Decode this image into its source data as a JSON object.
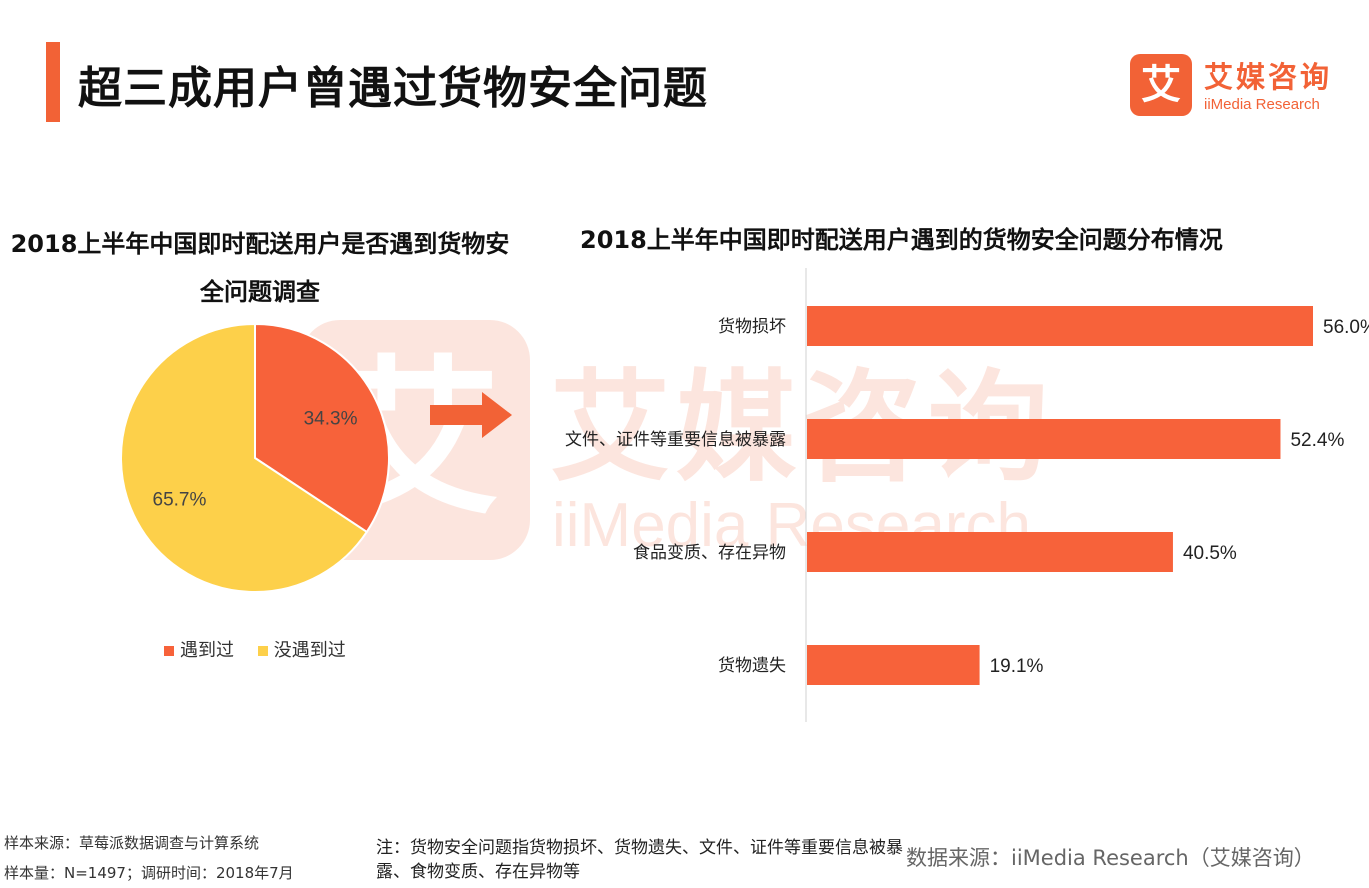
{
  "header": {
    "title": "超三成用户曾遇过货物安全问题",
    "logo_glyph": "艾",
    "logo_cn": "艾媒咨询",
    "logo_en": "iiMedia Research"
  },
  "watermark": {
    "glyph": "艾",
    "cn": "艾媒咨询",
    "en": "iiMedia Research"
  },
  "colors": {
    "accent": "#f26236",
    "encountered": "#f7623a",
    "not_encountered": "#fdd04a"
  },
  "chart_data": [
    {
      "type": "pie",
      "title": "2018上半年中国即时配送用户是否遇到货物安全问题调查",
      "labels": [
        "遇到过",
        "没遇到过"
      ],
      "values": [
        34.3,
        65.7
      ],
      "value_labels": [
        "34.3%",
        "65.7%"
      ],
      "colors": [
        "#f7623a",
        "#fdd04a"
      ],
      "legend": "bottom"
    },
    {
      "type": "bar",
      "orientation": "horizontal",
      "title": "2018上半年中国即时配送用户遇到的货物安全问题分布情况",
      "categories": [
        "货物损坏",
        "文件、证件等重要信息被暴露",
        "食品变质、存在异物",
        "货物遗失"
      ],
      "values": [
        56.0,
        52.4,
        40.5,
        19.1
      ],
      "value_labels": [
        "56.0%",
        "52.4%",
        "40.5%",
        "19.1%"
      ],
      "xlim": [
        0,
        60
      ],
      "color": "#f7623a",
      "grid": false
    }
  ],
  "footer": {
    "sample_source": "样本来源：草莓派数据调查与计算系统",
    "sample_size": "样本量：N=1497；调研时间：2018年7月",
    "note": "注：货物安全问题指货物损坏、货物遗失、文件、证件等重要信息被暴露、食物变质、存在异物等",
    "data_source": "数据来源：iiMedia Research（艾媒咨询）"
  }
}
